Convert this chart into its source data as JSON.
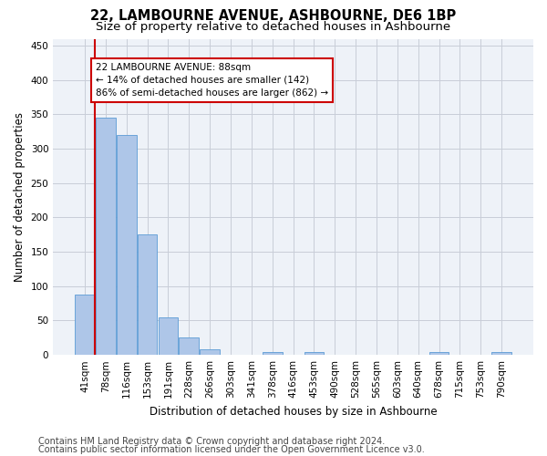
{
  "title": "22, LAMBOURNE AVENUE, ASHBOURNE, DE6 1BP",
  "subtitle": "Size of property relative to detached houses in Ashbourne",
  "xlabel": "Distribution of detached houses by size in Ashbourne",
  "ylabel": "Number of detached properties",
  "bin_labels": [
    "41sqm",
    "78sqm",
    "116sqm",
    "153sqm",
    "191sqm",
    "228sqm",
    "266sqm",
    "303sqm",
    "341sqm",
    "378sqm",
    "416sqm",
    "453sqm",
    "490sqm",
    "528sqm",
    "565sqm",
    "603sqm",
    "640sqm",
    "678sqm",
    "715sqm",
    "753sqm",
    "790sqm"
  ],
  "bar_values": [
    88,
    345,
    320,
    175,
    54,
    25,
    8,
    0,
    0,
    4,
    0,
    4,
    0,
    0,
    0,
    0,
    0,
    4,
    0,
    0,
    4
  ],
  "bar_color": "#aec6e8",
  "bar_edge_color": "#5b9bd5",
  "red_line_x": 0.5,
  "red_line_color": "#cc0000",
  "annotation_line1": "22 LAMBOURNE AVENUE: 88sqm",
  "annotation_line2": "← 14% of detached houses are smaller (142)",
  "annotation_line3": "86% of semi-detached houses are larger (862) →",
  "annotation_box_color": "#ffffff",
  "annotation_box_edge_color": "#cc0000",
  "ylim": [
    0,
    460
  ],
  "yticks": [
    0,
    50,
    100,
    150,
    200,
    250,
    300,
    350,
    400,
    450
  ],
  "footer_line1": "Contains HM Land Registry data © Crown copyright and database right 2024.",
  "footer_line2": "Contains public sector information licensed under the Open Government Licence v3.0.",
  "background_color": "#eef2f8",
  "grid_color": "#c8cdd8",
  "title_fontsize": 10.5,
  "subtitle_fontsize": 9.5,
  "axis_label_fontsize": 8.5,
  "tick_fontsize": 7.5,
  "annotation_fontsize": 7.5,
  "footer_fontsize": 7
}
